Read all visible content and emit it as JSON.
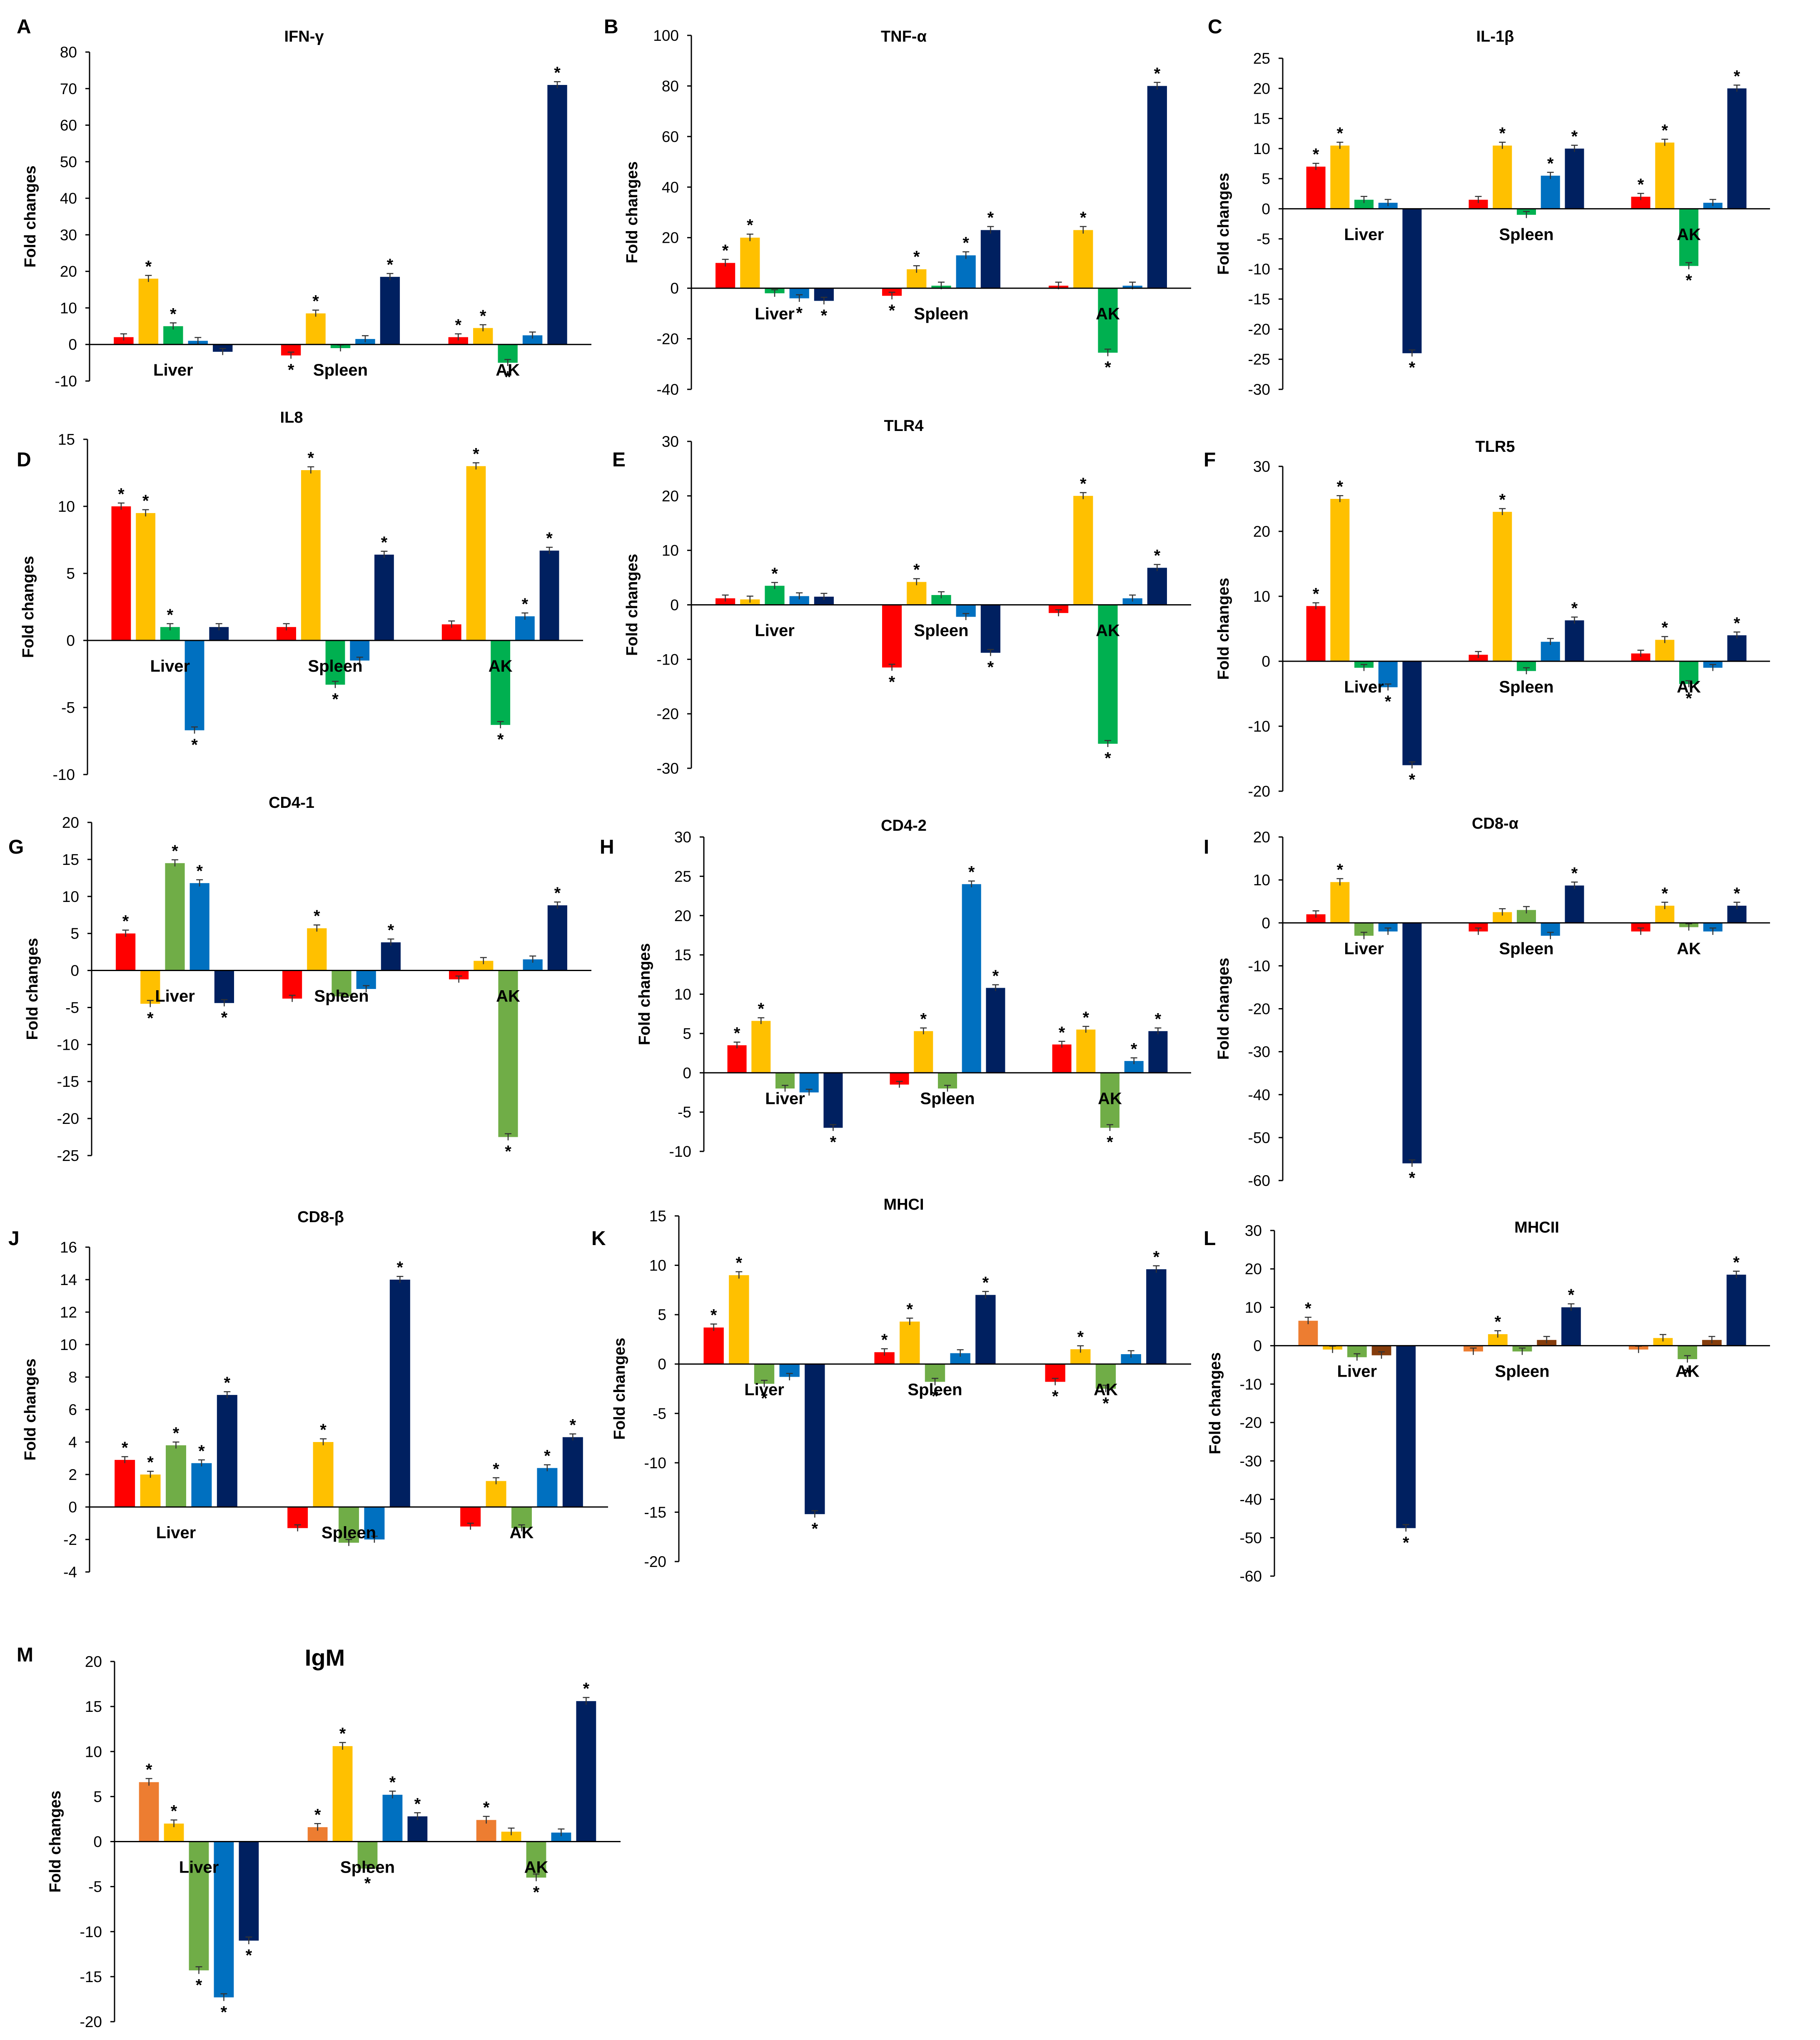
{
  "colors": {
    "red": "#ff0000",
    "yellow": "#ffc000",
    "green": "#00b050",
    "lightgreen": "#70ad47",
    "blue": "#0070c0",
    "navy": "#002060",
    "orange": "#ed7d31",
    "brown": "#843c0c"
  },
  "chart_data": [
    {
      "panel": "A",
      "type": "bar",
      "title": "IFN-γ",
      "ylabel": "Fold changes",
      "ylim": [
        -10,
        80
      ],
      "ticks": [
        -10,
        0,
        10,
        20,
        30,
        40,
        50,
        60,
        70,
        80
      ],
      "categories": [
        "Liver",
        "Spleen",
        "AK"
      ],
      "series": [
        {
          "color": "red",
          "values": [
            2,
            -3,
            2
          ],
          "stars": [
            false,
            true,
            true
          ]
        },
        {
          "color": "yellow",
          "values": [
            18,
            8.5,
            4.5
          ],
          "stars": [
            true,
            true,
            true
          ]
        },
        {
          "color": "green",
          "values": [
            5,
            -1,
            -5
          ],
          "stars": [
            true,
            false,
            true
          ]
        },
        {
          "color": "blue",
          "values": [
            1,
            1.5,
            2.5
          ],
          "stars": [
            false,
            false,
            false
          ]
        },
        {
          "color": "navy",
          "values": [
            -2,
            18.5,
            71
          ],
          "stars": [
            false,
            true,
            true
          ]
        }
      ]
    },
    {
      "panel": "B",
      "type": "bar",
      "title": "TNF-α",
      "ylabel": "Fold changes",
      "ylim": [
        -40,
        100
      ],
      "ticks": [
        -40,
        -20,
        0,
        20,
        40,
        60,
        80,
        100
      ],
      "categories": [
        "Liver",
        "Spleen",
        "AK"
      ],
      "series": [
        {
          "color": "red",
          "values": [
            10,
            -3,
            1
          ],
          "stars": [
            true,
            true,
            false
          ]
        },
        {
          "color": "yellow",
          "values": [
            20,
            7.5,
            23
          ],
          "stars": [
            true,
            true,
            true
          ]
        },
        {
          "color": "green",
          "values": [
            -2,
            1,
            -25.5
          ],
          "stars": [
            false,
            false,
            true
          ]
        },
        {
          "color": "blue",
          "values": [
            -4,
            13,
            1
          ],
          "stars": [
            true,
            true,
            false
          ]
        },
        {
          "color": "navy",
          "values": [
            -5,
            23,
            80
          ],
          "stars": [
            true,
            true,
            true
          ]
        }
      ]
    },
    {
      "panel": "C",
      "type": "bar",
      "title": "IL-1β",
      "ylabel": "Fold changes",
      "ylim": [
        -30,
        25
      ],
      "ticks": [
        -30,
        -25,
        -20,
        -15,
        -10,
        -5,
        0,
        5,
        10,
        15,
        20,
        25
      ],
      "categories": [
        "Liver",
        "Spleen",
        "AK"
      ],
      "series": [
        {
          "color": "red",
          "values": [
            7,
            1.5,
            2
          ],
          "stars": [
            true,
            false,
            true
          ]
        },
        {
          "color": "yellow",
          "values": [
            10.5,
            10.5,
            11
          ],
          "stars": [
            true,
            true,
            true
          ]
        },
        {
          "color": "green",
          "values": [
            1.5,
            -1,
            -9.5
          ],
          "stars": [
            false,
            false,
            true
          ]
        },
        {
          "color": "blue",
          "values": [
            1,
            5.5,
            1
          ],
          "stars": [
            false,
            true,
            false
          ]
        },
        {
          "color": "navy",
          "values": [
            -24,
            10,
            20
          ],
          "stars": [
            true,
            true,
            true
          ]
        }
      ]
    },
    {
      "panel": "D",
      "type": "bar",
      "title": "IL8",
      "ylabel": "Fold changes",
      "ylim": [
        -10,
        15
      ],
      "ticks": [
        -10,
        -5,
        0,
        5,
        10,
        15
      ],
      "categories": [
        "Liver",
        "Spleen",
        "AK"
      ],
      "series": [
        {
          "color": "red",
          "values": [
            10,
            1,
            1.2
          ],
          "stars": [
            true,
            false,
            false
          ]
        },
        {
          "color": "yellow",
          "values": [
            9.5,
            12.7,
            13
          ],
          "stars": [
            true,
            true,
            true
          ]
        },
        {
          "color": "green",
          "values": [
            1,
            -3.3,
            -6.3
          ],
          "stars": [
            true,
            true,
            true
          ]
        },
        {
          "color": "blue",
          "values": [
            -6.7,
            -1.5,
            1.8
          ],
          "stars": [
            true,
            false,
            true
          ]
        },
        {
          "color": "navy",
          "values": [
            1,
            6.4,
            6.7
          ],
          "stars": [
            false,
            true,
            true
          ]
        }
      ]
    },
    {
      "panel": "E",
      "type": "bar",
      "title": "TLR4",
      "ylabel": "Fold changes",
      "ylim": [
        -30,
        30
      ],
      "ticks": [
        -30,
        -20,
        -10,
        0,
        10,
        20,
        30
      ],
      "categories": [
        "Liver",
        "Spleen",
        "AK"
      ],
      "series": [
        {
          "color": "red",
          "values": [
            1.2,
            -11.5,
            -1.5
          ],
          "stars": [
            false,
            true,
            false
          ]
        },
        {
          "color": "yellow",
          "values": [
            1,
            4.2,
            20
          ],
          "stars": [
            false,
            true,
            true
          ]
        },
        {
          "color": "green",
          "values": [
            3.5,
            1.8,
            -25.5
          ],
          "stars": [
            true,
            false,
            true
          ]
        },
        {
          "color": "blue",
          "values": [
            1.6,
            -2.2,
            1.2
          ],
          "stars": [
            false,
            false,
            false
          ]
        },
        {
          "color": "navy",
          "values": [
            1.5,
            -8.8,
            6.8
          ],
          "stars": [
            false,
            true,
            true
          ]
        }
      ]
    },
    {
      "panel": "F",
      "type": "bar",
      "title": "TLR5",
      "ylabel": "Fold changes",
      "ylim": [
        -20,
        30
      ],
      "ticks": [
        -20,
        -10,
        0,
        10,
        20,
        30
      ],
      "categories": [
        "Liver",
        "Spleen",
        "AK"
      ],
      "series": [
        {
          "color": "red",
          "values": [
            8.5,
            1,
            1.2
          ],
          "stars": [
            true,
            false,
            false
          ]
        },
        {
          "color": "yellow",
          "values": [
            25,
            23,
            3.3
          ],
          "stars": [
            true,
            true,
            true
          ]
        },
        {
          "color": "green",
          "values": [
            -1,
            -1.5,
            -3.5
          ],
          "stars": [
            false,
            false,
            true
          ]
        },
        {
          "color": "blue",
          "values": [
            -4,
            3,
            -1
          ],
          "stars": [
            true,
            false,
            false
          ]
        },
        {
          "color": "navy",
          "values": [
            -16,
            6.3,
            4
          ],
          "stars": [
            true,
            true,
            true
          ]
        }
      ]
    },
    {
      "panel": "G",
      "type": "bar",
      "title": "CD4-1",
      "ylabel": "Fold changes",
      "ylim": [
        -25,
        20
      ],
      "ticks": [
        -25,
        -20,
        -15,
        -10,
        -5,
        0,
        5,
        10,
        15,
        20
      ],
      "categories": [
        "Liver",
        "Spleen",
        "AK"
      ],
      "series": [
        {
          "color": "red",
          "values": [
            5,
            -3.8,
            -1.2
          ],
          "stars": [
            true,
            false,
            false
          ]
        },
        {
          "color": "yellow",
          "values": [
            -4.5,
            5.7,
            1.3
          ],
          "stars": [
            true,
            true,
            false
          ]
        },
        {
          "color": "lightgreen",
          "values": [
            14.5,
            -3.5,
            -22.5
          ],
          "stars": [
            true,
            false,
            true
          ]
        },
        {
          "color": "blue",
          "values": [
            11.8,
            -2.5,
            1.5
          ],
          "stars": [
            true,
            false,
            false
          ]
        },
        {
          "color": "navy",
          "values": [
            -4.4,
            3.8,
            8.8
          ],
          "stars": [
            true,
            true,
            true
          ]
        }
      ]
    },
    {
      "panel": "H",
      "type": "bar",
      "title": "CD4-2",
      "ylabel": "Fold changes",
      "ylim": [
        -10,
        30
      ],
      "ticks": [
        -10,
        -5,
        0,
        5,
        10,
        15,
        20,
        25,
        30
      ],
      "categories": [
        "Liver",
        "Spleen",
        "AK"
      ],
      "series": [
        {
          "color": "red",
          "values": [
            3.5,
            -1.5,
            3.6
          ],
          "stars": [
            true,
            false,
            true
          ]
        },
        {
          "color": "yellow",
          "values": [
            6.6,
            5.3,
            5.5
          ],
          "stars": [
            true,
            true,
            true
          ]
        },
        {
          "color": "lightgreen",
          "values": [
            -2,
            -2,
            -7
          ],
          "stars": [
            false,
            false,
            true
          ]
        },
        {
          "color": "blue",
          "values": [
            -2.5,
            24,
            1.5
          ],
          "stars": [
            false,
            true,
            true
          ]
        },
        {
          "color": "navy",
          "values": [
            -7,
            10.8,
            5.3
          ],
          "stars": [
            true,
            true,
            true
          ]
        }
      ]
    },
    {
      "panel": "I",
      "type": "bar",
      "title": "CD8-α",
      "ylabel": "Fold changes",
      "ylim": [
        -60,
        20
      ],
      "ticks": [
        -60,
        -50,
        -40,
        -30,
        -20,
        -10,
        0,
        10,
        20
      ],
      "categories": [
        "Liver",
        "Spleen",
        "AK"
      ],
      "series": [
        {
          "color": "red",
          "values": [
            2,
            -2,
            -2
          ],
          "stars": [
            false,
            false,
            false
          ]
        },
        {
          "color": "yellow",
          "values": [
            9.5,
            2.5,
            4
          ],
          "stars": [
            true,
            false,
            true
          ]
        },
        {
          "color": "lightgreen",
          "values": [
            -3,
            3,
            -1
          ],
          "stars": [
            false,
            false,
            false
          ]
        },
        {
          "color": "blue",
          "values": [
            -2,
            -3,
            -2
          ],
          "stars": [
            false,
            false,
            false
          ]
        },
        {
          "color": "navy",
          "values": [
            -56,
            8.7,
            4
          ],
          "stars": [
            true,
            true,
            true
          ]
        }
      ]
    },
    {
      "panel": "J",
      "type": "bar",
      "title": "CD8-β",
      "ylabel": "Fold changes",
      "ylim": [
        -4,
        16
      ],
      "ticks": [
        -4,
        -2,
        0,
        2,
        4,
        6,
        8,
        10,
        12,
        14,
        16
      ],
      "categories": [
        "Liver",
        "Spleen",
        "AK"
      ],
      "series": [
        {
          "color": "red",
          "values": [
            2.9,
            -1.3,
            -1.2
          ],
          "stars": [
            true,
            false,
            false
          ]
        },
        {
          "color": "yellow",
          "values": [
            2,
            4,
            1.6
          ],
          "stars": [
            true,
            true,
            true
          ]
        },
        {
          "color": "lightgreen",
          "values": [
            3.8,
            -2.2,
            -1.3
          ],
          "stars": [
            true,
            false,
            false
          ]
        },
        {
          "color": "blue",
          "values": [
            2.7,
            -2,
            2.4
          ],
          "stars": [
            true,
            false,
            true
          ]
        },
        {
          "color": "navy",
          "values": [
            6.9,
            14,
            4.3
          ],
          "stars": [
            true,
            true,
            true
          ]
        }
      ]
    },
    {
      "panel": "K",
      "type": "bar",
      "title": "MHCI",
      "ylabel": "Fold changes",
      "ylim": [
        -20,
        15
      ],
      "ticks": [
        -20,
        -15,
        -10,
        -5,
        0,
        5,
        10,
        15
      ],
      "categories": [
        "Liver",
        "Spleen",
        "AK"
      ],
      "series": [
        {
          "color": "red",
          "values": [
            3.7,
            1.2,
            -1.8
          ],
          "stars": [
            true,
            true,
            true
          ]
        },
        {
          "color": "yellow",
          "values": [
            9,
            4.3,
            1.5
          ],
          "stars": [
            true,
            true,
            true
          ]
        },
        {
          "color": "lightgreen",
          "values": [
            -2,
            -1.8,
            -2.5
          ],
          "stars": [
            true,
            true,
            true
          ]
        },
        {
          "color": "blue",
          "values": [
            -1.3,
            1.1,
            1
          ],
          "stars": [
            false,
            false,
            false
          ]
        },
        {
          "color": "navy",
          "values": [
            -15.2,
            7,
            9.6
          ],
          "stars": [
            true,
            true,
            true
          ]
        }
      ]
    },
    {
      "panel": "L",
      "type": "bar",
      "title": "MHCII",
      "ylabel": "Fold changes",
      "ylim": [
        -60,
        30
      ],
      "ticks": [
        -60,
        -50,
        -40,
        -30,
        -20,
        -10,
        0,
        10,
        20,
        30
      ],
      "categories": [
        "Liver",
        "Spleen",
        "AK"
      ],
      "series": [
        {
          "color": "orange",
          "values": [
            6.5,
            -1.5,
            -1
          ],
          "stars": [
            true,
            false,
            false
          ]
        },
        {
          "color": "yellow",
          "values": [
            -1,
            3,
            2
          ],
          "stars": [
            false,
            true,
            false
          ]
        },
        {
          "color": "lightgreen",
          "values": [
            -3,
            -1.5,
            -3.5
          ],
          "stars": [
            false,
            false,
            true
          ]
        },
        {
          "color": "brown",
          "values": [
            -2.5,
            1.5,
            1.5
          ],
          "stars": [
            false,
            false,
            false
          ]
        },
        {
          "color": "navy",
          "values": [
            -47.5,
            10,
            18.5
          ],
          "stars": [
            true,
            true,
            true
          ]
        }
      ]
    },
    {
      "panel": "M",
      "type": "bar",
      "title": "IgM",
      "ylabel": "Fold changes",
      "ylim": [
        -20,
        20
      ],
      "ticks": [
        -20,
        -15,
        -10,
        -5,
        0,
        5,
        10,
        15,
        20
      ],
      "categories": [
        "Liver",
        "Spleen",
        "AK"
      ],
      "series": [
        {
          "color": "orange",
          "values": [
            6.6,
            1.6,
            2.4
          ],
          "stars": [
            true,
            true,
            true
          ]
        },
        {
          "color": "yellow",
          "values": [
            2,
            10.6,
            1.1
          ],
          "stars": [
            true,
            true,
            false
          ]
        },
        {
          "color": "lightgreen",
          "values": [
            -14.3,
            -3,
            -4
          ],
          "stars": [
            true,
            true,
            true
          ]
        },
        {
          "color": "blue",
          "values": [
            -17.3,
            5.2,
            1
          ],
          "stars": [
            true,
            true,
            false
          ]
        },
        {
          "color": "navy",
          "values": [
            -11,
            2.8,
            15.6
          ],
          "stars": [
            true,
            true,
            true
          ]
        }
      ]
    }
  ]
}
